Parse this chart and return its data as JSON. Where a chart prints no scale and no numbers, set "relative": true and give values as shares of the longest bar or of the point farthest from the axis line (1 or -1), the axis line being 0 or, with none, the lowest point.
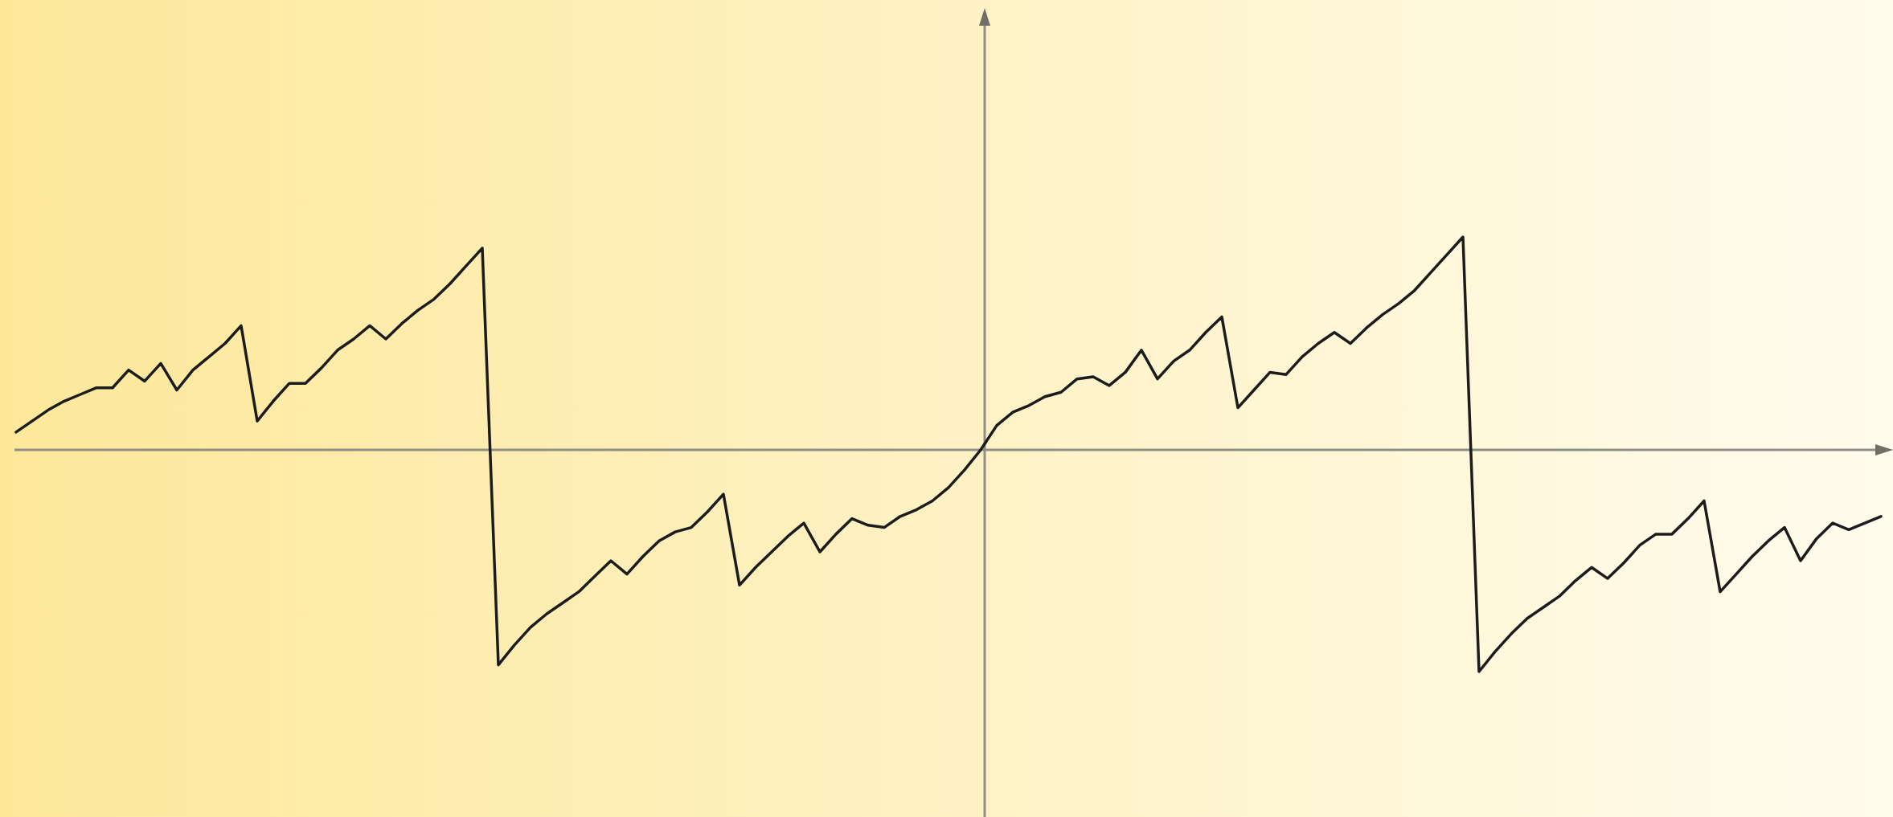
{
  "chart_data": {
    "type": "line",
    "relative": true,
    "marker": "none",
    "line_style": "solid",
    "color": "#1c1c1c",
    "categories": [
      null,
      null,
      null,
      null,
      null,
      null,
      null,
      null,
      null,
      null,
      null,
      null,
      null,
      null,
      null,
      null,
      null,
      null,
      null,
      null,
      null,
      null,
      null,
      null,
      null,
      null,
      null,
      null,
      null,
      null,
      null,
      null,
      null,
      null,
      null,
      null,
      null,
      null,
      null,
      null,
      null,
      null,
      null,
      null,
      null,
      null,
      null,
      null,
      null,
      null,
      null,
      null,
      null,
      null,
      null,
      null,
      null,
      null,
      null,
      null,
      null,
      null,
      null,
      null,
      null,
      null,
      null,
      null,
      null,
      null,
      null,
      null,
      null,
      null,
      null,
      null,
      null,
      null,
      null,
      null,
      null,
      null,
      null,
      null,
      null,
      null,
      null,
      null,
      null,
      null,
      null,
      null,
      null,
      null,
      null,
      null,
      null,
      null,
      null,
      null,
      null,
      null,
      null,
      null,
      null,
      null,
      null,
      null,
      null,
      null,
      null,
      null,
      null,
      null,
      null,
      null,
      null
    ],
    "values": [
      0.08,
      0.13,
      0.18,
      0.22,
      0.25,
      0.28,
      0.28,
      0.36,
      0.31,
      0.39,
      0.27,
      0.36,
      0.42,
      0.48,
      0.56,
      0.13,
      0.22,
      0.3,
      0.3,
      0.37,
      0.45,
      0.5,
      0.56,
      0.5,
      0.57,
      0.63,
      0.68,
      0.75,
      0.83,
      0.91,
      -0.97,
      -0.88,
      -0.8,
      -0.74,
      -0.69,
      -0.64,
      -0.57,
      -0.5,
      -0.56,
      -0.48,
      -0.41,
      -0.37,
      -0.35,
      -0.28,
      -0.2,
      -0.61,
      -0.53,
      -0.46,
      -0.39,
      -0.33,
      -0.46,
      -0.38,
      -0.31,
      -0.34,
      -0.35,
      -0.3,
      -0.27,
      -0.23,
      -0.17,
      -0.09,
      0,
      0.11,
      0.17,
      0.2,
      0.24,
      0.26,
      0.32,
      0.33,
      0.29,
      0.35,
      0.45,
      0.32,
      0.4,
      0.45,
      0.53,
      0.6,
      0.19,
      0.27,
      0.35,
      0.34,
      0.42,
      0.48,
      0.53,
      0.48,
      0.55,
      0.61,
      0.66,
      0.72,
      0.8,
      0.88,
      0.96,
      -1,
      -0.91,
      -0.83,
      -0.76,
      -0.71,
      -0.66,
      -0.59,
      -0.53,
      -0.58,
      -0.51,
      -0.43,
      -0.38,
      -0.38,
      -0.31,
      -0.23,
      -0.64,
      -0.56,
      -0.48,
      -0.41,
      -0.35,
      -0.5,
      -0.4,
      -0.33,
      -0.36,
      -0.33,
      -0.3
    ]
  }
}
